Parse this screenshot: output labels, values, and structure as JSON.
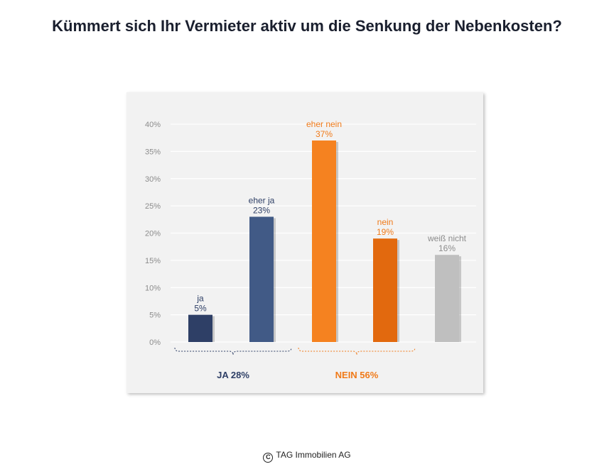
{
  "title": "Kümmert sich Ihr Vermieter aktiv um die Senkung der Nebenkosten?",
  "footer": {
    "icon": "copyright-icon",
    "icon_glyph": "C",
    "text": "TAG Immobilien AG"
  },
  "chart_data": {
    "type": "bar",
    "title": "Kümmert sich Ihr Vermieter aktiv um die Senkung der Nebenkosten?",
    "xlabel": "",
    "ylabel": "",
    "ylim": [
      0,
      40
    ],
    "y_ticks": [
      "0%",
      "5%",
      "10%",
      "15%",
      "20%",
      "25%",
      "30%",
      "35%",
      "40%"
    ],
    "grid": true,
    "categories": [
      "ja",
      "eher ja",
      "eher nein",
      "nein",
      "weiß nicht"
    ],
    "values": [
      5,
      23,
      37,
      19,
      16
    ],
    "value_labels": [
      "5%",
      "23%",
      "37%",
      "19%",
      "16%"
    ],
    "colors": [
      "#2e3f66",
      "#415a86",
      "#f58220",
      "#e2690e",
      "#bfbfbf"
    ],
    "label_colors": [
      "#2e3f66",
      "#2e3f66",
      "#f07a19",
      "#f07a19",
      "#8c8c8c"
    ],
    "groups": [
      {
        "label": "JA 28%",
        "from": 0,
        "to": 1,
        "color": "#2e3f66"
      },
      {
        "label": "NEIN 56%",
        "from": 2,
        "to": 3,
        "color": "#f07a19"
      }
    ]
  }
}
